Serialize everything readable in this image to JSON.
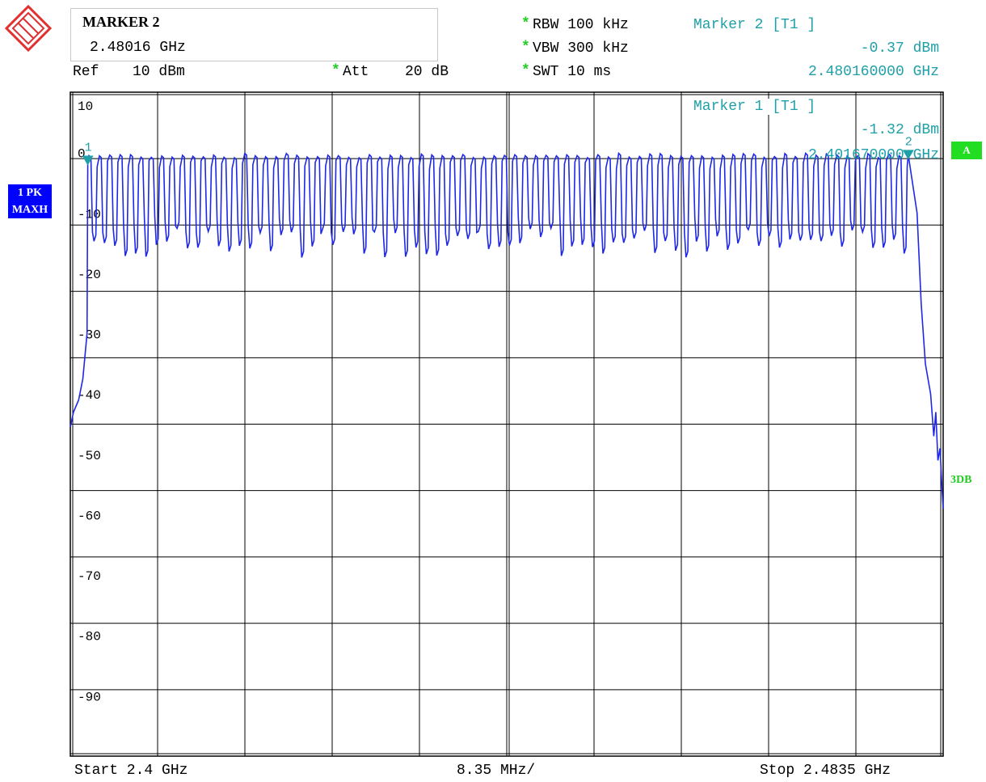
{
  "header": {
    "marker_box_title": "MARKER 2",
    "marker_box_freq": "2.48016 GHz",
    "ref_label": "Ref",
    "ref_value": "10 dBm",
    "att_star": "*",
    "att_label": "Att",
    "att_value": "20 dB",
    "rbw": "RBW 100 kHz",
    "vbw": "VBW 300 kHz",
    "swt": "SWT 10 ms",
    "star": "*"
  },
  "marker2_readout": {
    "title": "Marker 2 [T1 ]",
    "level": "-0.37 dBm",
    "freq": "2.480160000 GHz"
  },
  "marker1_readout": {
    "title": "Marker 1 [T1 ]",
    "level": "-1.32 dBm",
    "freq": "2.401670000 GHz"
  },
  "side": {
    "trace_badge_1": "1 PK",
    "trace_badge_2": "MAXH",
    "display_badge": "A",
    "limit_label": "3DB"
  },
  "footer": {
    "start": "Start 2.4 GHz",
    "span_per_div": "8.35 MHz/",
    "stop": "Stop 2.4835 GHz"
  },
  "colors": {
    "trace": "#1e28e6",
    "marker": "#1fa0a8",
    "badge_blue": "#0000ff",
    "badge_green": "#22dd22"
  },
  "chart_data": {
    "type": "line",
    "title": "",
    "xlabel": "",
    "ylabel": "",
    "xlim": [
      2.4,
      2.4835
    ],
    "ylim": [
      -100,
      10
    ],
    "y_ticks": [
      10,
      0,
      -10,
      -20,
      -30,
      -40,
      -50,
      -60,
      -70,
      -80,
      -90
    ],
    "y_tick_labels": [
      "10",
      "0",
      "-10",
      "-20",
      "-30",
      "-40",
      "-50",
      "-60",
      "-70",
      "-80",
      "-90"
    ],
    "grid": true,
    "x_divisions": 10,
    "y_divisions": 10,
    "series": [
      {
        "fill_band": {
          "x_start": 2.40167,
          "x_end": 2.48016,
          "peak_dBm": -0.5,
          "valley_dBm": -15.5,
          "hop_count": 79
        },
        "values": [
          [
            2.4,
            -45.5
          ],
          [
            2.4003,
            -43.0
          ],
          [
            2.4008,
            -41.0
          ],
          [
            2.4012,
            -37.5
          ],
          [
            2.4016,
            -30.0
          ],
          [
            2.402,
            -20.0
          ],
          [
            2.4025,
            -10.0
          ],
          [
            2.403,
            -3.0
          ],
          [
            2.40167,
            -1.32
          ],
          [
            2.478,
            -0.5
          ],
          [
            2.48016,
            -0.37
          ],
          [
            2.481,
            -10.0
          ],
          [
            2.4814,
            -25.0
          ],
          [
            2.4818,
            -35.0
          ],
          [
            2.4823,
            -40.0
          ],
          [
            2.4826,
            -47.0
          ],
          [
            2.4828,
            -43.0
          ],
          [
            2.483,
            -51.0
          ],
          [
            2.4832,
            -49.0
          ],
          [
            2.4834,
            -56.0
          ],
          [
            2.4835,
            -59.0
          ]
        ]
      }
    ],
    "markers": [
      {
        "id": "1",
        "x": 2.40167,
        "y": -1.32
      },
      {
        "id": "2",
        "x": 2.48016,
        "y": -0.37
      }
    ]
  }
}
